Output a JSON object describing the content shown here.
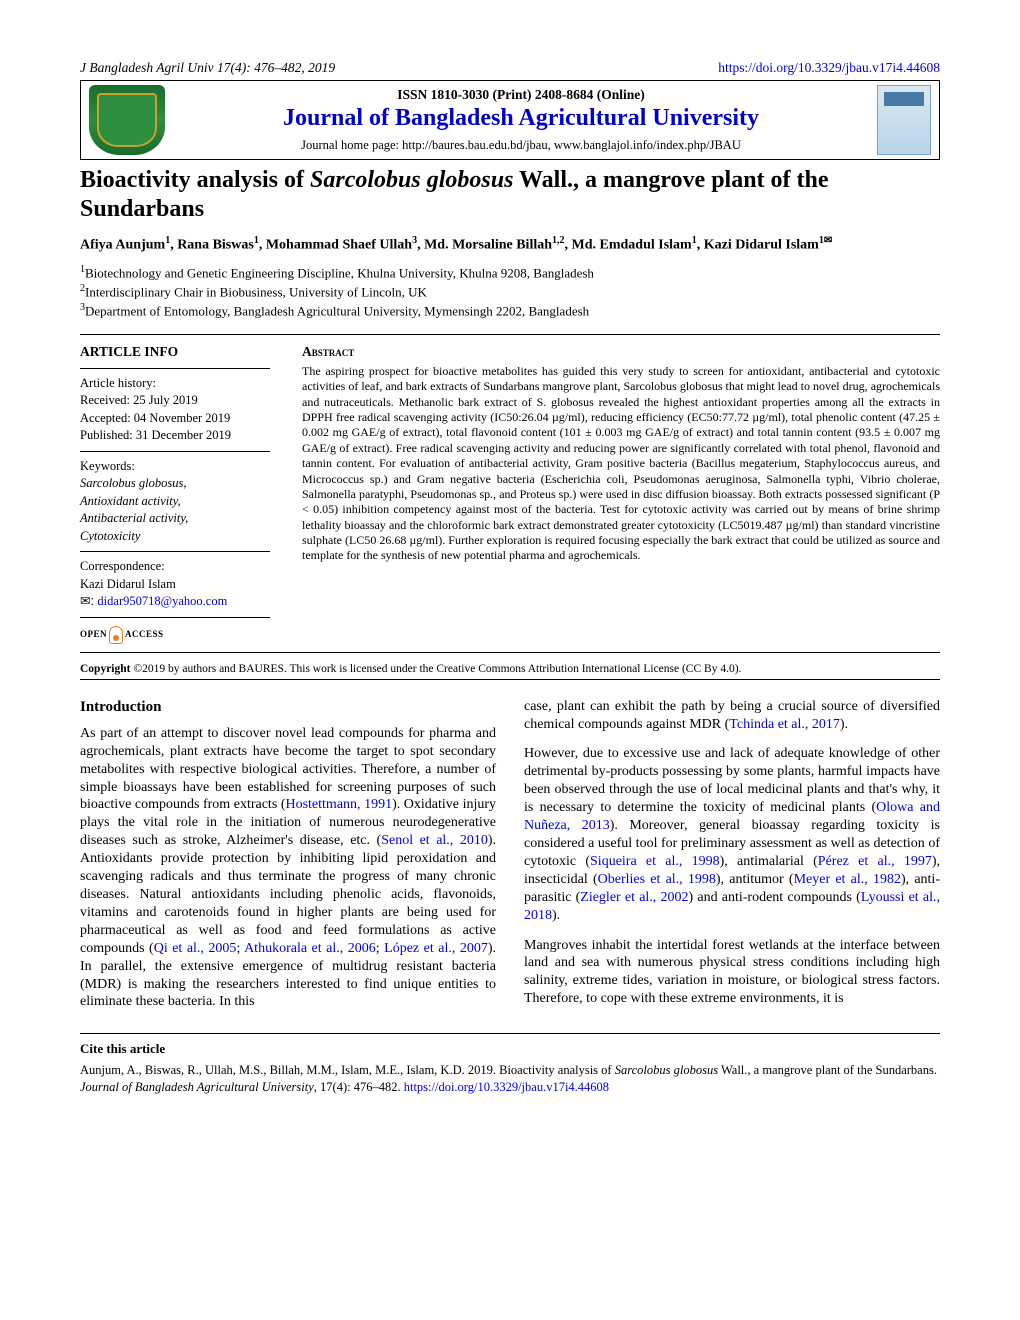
{
  "header": {
    "journal_ref": "J Bangladesh Agril Univ 17(4): 476–482, 2019",
    "doi_url": "https://doi.org/10.3329/jbau.v17i4.44608",
    "issn": "ISSN 1810-3030 (Print) 2408-8684 (Online)",
    "journal_name": "Journal of Bangladesh Agricultural University",
    "home": "Journal home page: http://baures.bau.edu.bd/jbau, www.banglajol.info/index.php/JBAU"
  },
  "title_pre": "Bioactivity analysis of ",
  "title_sci": "Sarcolobus globosus",
  "title_post": " Wall., a mangrove plant of the Sundarbans",
  "authors_html": "Afiya Aunjum<sup>1</sup>, Rana Biswas<sup>1</sup>, Mohammad Shaef Ullah<sup>3</sup>, Md. Morsaline Billah<sup>1,2</sup>, Md. Emdadul Islam<sup>1</sup>, Kazi Didarul Islam<sup>1✉</sup>",
  "affiliations": [
    "Biotechnology and Genetic Engineering Discipline, Khulna University, Khulna 9208, Bangladesh",
    "Interdisciplinary Chair in Biobusiness, University of Lincoln, UK",
    "Department of Entomology, Bangladesh Agricultural University, Mymensingh 2202, Bangladesh"
  ],
  "article_info": {
    "heading": "ARTICLE INFO",
    "history_hd": "Article history:",
    "received": "Received: 25 July 2019",
    "accepted": "Accepted: 04 November 2019",
    "published": "Published: 31 December 2019",
    "keywords_hd": "Keywords:",
    "keywords": "Sarcolobus globosus,\nAntioxidant activity,\nAntibacterial activity,\nCytotoxicity",
    "corr_hd": "Correspondence:",
    "corr_name": "Kazi Didarul Islam",
    "email_label": "✉: ",
    "email": "didar950718@yahoo.com",
    "oa_open": "OPEN",
    "oa_access": "ACCESS"
  },
  "abstract": {
    "heading": "Abstract",
    "text": "The aspiring prospect for bioactive metabolites has guided this very study to screen for antioxidant, antibacterial and cytotoxic activities of leaf, and bark extracts of Sundarbans mangrove plant, Sarcolobus globosus that might lead to novel drug, agrochemicals and nutraceuticals. Methanolic bark extract of S. globosus revealed the highest antioxidant properties among all the extracts in DPPH free radical scavenging activity (IC50:26.04 µg/ml), reducing efficiency (EC50:77.72 µg/ml), total phenolic content (47.25 ± 0.002 mg GAE/g of extract), total flavonoid content (101 ± 0.003 mg GAE/g of extract) and total tannin content (93.5 ± 0.007 mg GAE/g of extract). Free radical scavenging activity and reducing power are significantly correlated with total phenol, flavonoid and tannin content. For evaluation of antibacterial activity, Gram positive bacteria (Bacillus megaterium, Staphylococcus aureus, and Micrococcus sp.) and Gram negative bacteria (Escherichia coli, Pseudomonas aeruginosa, Salmonella typhi, Vibrio cholerae, Salmonella paratyphi, Pseudomonas sp., and Proteus sp.) were used in disc diffusion bioassay. Both extracts possessed significant (P < 0.05) inhibition competency against most of the bacteria. Test for cytotoxic activity was carried out by means of brine shrimp lethality bioassay and the chloroformic bark extract demonstrated greater cytotoxicity (LC5019.487 µg/ml) than standard vincristine sulphate (LC50 26.68 µg/ml). Further exploration is required focusing especially the bark extract that could be utilized as source and template for the synthesis of new potential pharma and agrochemicals."
  },
  "copyright": "Copyright ©2019 by authors and BAURES. This work is licensed under the Creative Commons Attribution International License (CC By 4.0).",
  "intro_heading": "Introduction",
  "col1_p1a": "As part of an attempt to discover novel lead compounds for pharma and agrochemicals, plant extracts have become the target to spot secondary metabolites with respective biological activities. Therefore, a number of simple bioassays have been established for screening purposes of such bioactive compounds from extracts (",
  "col1_ref1": "Hostettmann, 1991",
  "col1_p1b": "). Oxidative injury plays the vital role in the initiation of numerous neurodegenerative diseases such as stroke, Alzheimer's disease, etc. (",
  "col1_ref2": "Senol et al., 2010",
  "col1_p1c": "). Antioxidants provide protection by inhibiting lipid peroxidation and scavenging radicals and thus terminate the progress of many chronic diseases. Natural antioxidants including phenolic acids, flavonoids, vitamins and carotenoids found in higher plants are being used for pharmaceutical as well as food and feed formulations as active compounds (",
  "col1_ref3": "Qi et al., 2005",
  "col1_sep1": "; ",
  "col1_ref4": "Athukorala et al., 2006",
  "col1_sep2": "; ",
  "col1_ref5": "López et al., 2007",
  "col1_p1d": "). In parallel, the extensive emergence of multidrug resistant bacteria (MDR) is making the researchers interested to find unique entities to eliminate these bacteria. In this",
  "col2_p1a": "case, plant can exhibit the path by being a crucial source of diversified chemical compounds against MDR (",
  "col2_ref1": "Tchinda et al., 2017",
  "col2_p1b": ").",
  "col2_p2a": "However, due to excessive use and lack of adequate knowledge of other detrimental by-products possessing by some plants, harmful impacts have been observed through the use of local medicinal plants and that's why, it is necessary to determine the toxicity of medicinal plants (",
  "col2_ref2": "Olowa and Nuñeza, 2013",
  "col2_p2b": "). Moreover, general bioassay regarding toxicity is considered a useful tool for preliminary assessment as well as detection of cytotoxic (",
  "col2_ref3": "Siqueira et al., 1998",
  "col2_p2c": "), antimalarial (",
  "col2_ref4": "Pérez et al., 1997",
  "col2_p2d": "), insecticidal (",
  "col2_ref5": "Oberlies et al., 1998",
  "col2_p2e": "), antitumor (",
  "col2_ref6": "Meyer et al., 1982",
  "col2_p2f": "), anti-parasitic (",
  "col2_ref7": "Ziegler et al., 2002",
  "col2_p2g": ") and anti-rodent compounds (",
  "col2_ref8": "Lyoussi et al., 2018",
  "col2_p2h": ").",
  "col2_p3": "Mangroves inhabit the intertidal forest wetlands at the interface between land and sea with numerous physical stress conditions including high salinity, extreme tides, variation in moisture, or biological stress factors. Therefore, to cope with these extreme environments, it is",
  "cite": {
    "hd": "Cite this article",
    "text_a": "Aunjum, A., Biswas, R., Ullah, M.S., Billah, M.M., Islam, M.E., Islam, K.D. 2019. Bioactivity analysis of ",
    "sci": "Sarcolobus globosus",
    "text_b": " Wall., a mangrove plant of the Sundarbans. ",
    "jname": "Journal of Bangladesh Agricultural University",
    "text_c": ", 17(4): 476–482. ",
    "doi": "https://doi.org/10.3329/jbau.v17i4.44608"
  },
  "colors": {
    "link": "#0000ee",
    "journal_title": "#0000cc",
    "oa_orange": "#e67e22"
  }
}
